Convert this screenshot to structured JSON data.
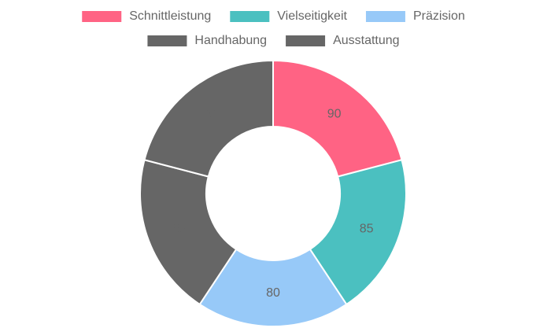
{
  "chart_data": {
    "type": "doughnut",
    "categories": [
      "Schnittleistung",
      "Vielseitigkeit",
      "Präzision",
      "Handhabung",
      "Ausstattung"
    ],
    "values": [
      90,
      85,
      80,
      85,
      90
    ],
    "colors": [
      "#ff6384",
      "#4bc0c0",
      "#97c9f8",
      "#666666",
      "#666666"
    ],
    "legend": "top"
  }
}
